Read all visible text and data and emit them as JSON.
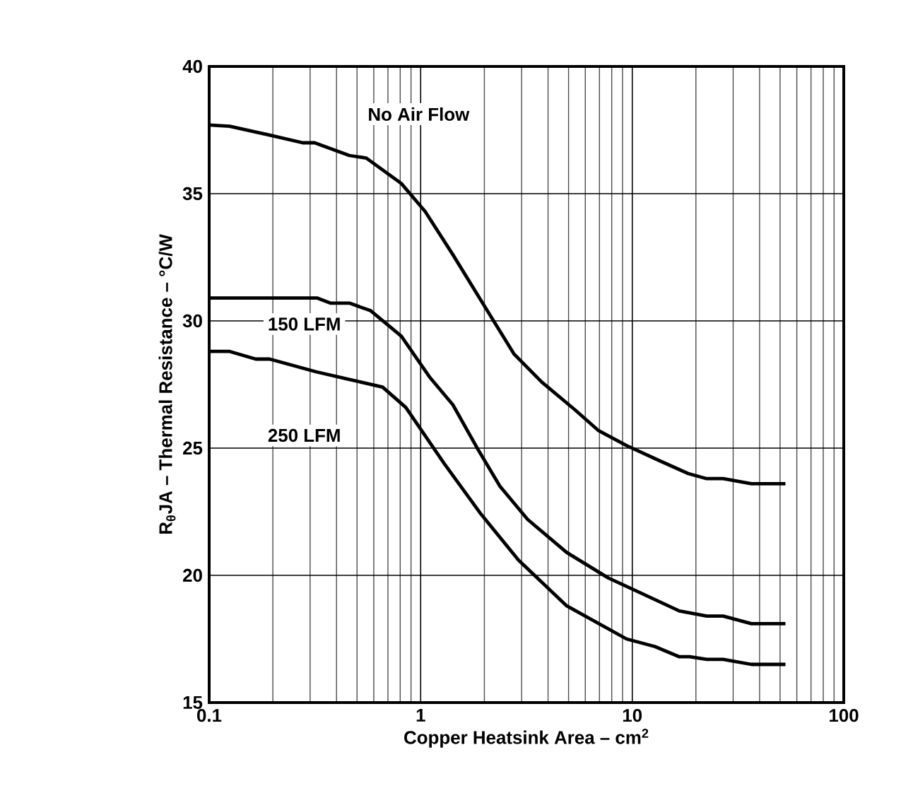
{
  "chart_data": {
    "type": "line",
    "xlabel": "Copper Heatsink Area – cm$^{2}$",
    "ylabel": "R$_{θ}$JA – Thermal Resistance – °C/W",
    "log": "x",
    "grid": true,
    "legend": false,
    "marker": "none",
    "line_style": "solid",
    "xlim": [
      0.1,
      100
    ],
    "xticks": [
      0.1,
      1,
      10,
      100
    ],
    "ylim": [
      15,
      40
    ],
    "yticks": [
      15,
      20,
      25,
      30,
      35,
      40
    ],
    "series": [
      {
        "name": "No Air Flow",
        "color": "#000000",
        "x": [
          0.1,
          0.125,
          0.193,
          0.277,
          0.315,
          0.46,
          0.553,
          0.81,
          1.05,
          1.42,
          1.93,
          2.76,
          3.73,
          5.37,
          6.9,
          9.4,
          13.5,
          18.4,
          22.5,
          26.9,
          36.6,
          53
        ],
        "values": [
          37.7,
          37.65,
          37.3,
          37.0,
          37.0,
          36.5,
          36.4,
          35.4,
          34.3,
          32.6,
          30.8,
          28.7,
          27.6,
          26.5,
          25.7,
          25.1,
          24.5,
          24.0,
          23.8,
          23.8,
          23.6,
          23.6
        ]
      },
      {
        "name": "150 LFM",
        "color": "#000000",
        "x": [
          0.1,
          0.323,
          0.374,
          0.46,
          0.58,
          0.81,
          1.1,
          1.42,
          1.88,
          2.37,
          3.2,
          4.9,
          7.7,
          11.0,
          16.7,
          22.5,
          26.9,
          36.6,
          53
        ],
        "values": [
          30.9,
          30.9,
          30.7,
          30.7,
          30.4,
          29.4,
          27.8,
          26.7,
          24.9,
          23.5,
          22.2,
          20.9,
          19.9,
          19.3,
          18.6,
          18.4,
          18.4,
          18.1,
          18.1
        ]
      },
      {
        "name": "250 LFM",
        "color": "#000000",
        "x": [
          0.1,
          0.125,
          0.166,
          0.193,
          0.32,
          0.46,
          0.66,
          0.85,
          1.29,
          1.93,
          2.9,
          4.9,
          9.4,
          12.8,
          16.7,
          18.7,
          22.5,
          26.9,
          36.6,
          53
        ],
        "values": [
          28.8,
          28.8,
          28.5,
          28.5,
          28.0,
          27.7,
          27.4,
          26.6,
          24.4,
          22.4,
          20.6,
          18.8,
          17.5,
          17.2,
          16.8,
          16.8,
          16.7,
          16.7,
          16.5,
          16.5
        ]
      }
    ]
  }
}
